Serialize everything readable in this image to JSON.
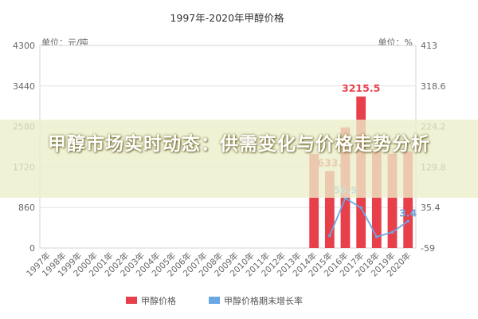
{
  "overlay": {
    "headline": "甲醇市场实时动态：供需变化与价格走势分析"
  },
  "chart_data": {
    "type": "bar",
    "title": "1997年-2020年甲醇价格",
    "left_unit_label": "单位：元/吨",
    "right_unit_label": "单位：%",
    "categories": [
      "1997年",
      "1998年",
      "1999年",
      "2000年",
      "2001年",
      "2002年",
      "2003年",
      "2004年",
      "2005年",
      "2006年",
      "2007年",
      "2008年",
      "2009年",
      "2010年",
      "2011年",
      "2012年",
      "2013年",
      "2014年",
      "2015年",
      "2016年",
      "2017年",
      "2018年",
      "2019年",
      "2020年"
    ],
    "left_axis": {
      "min": 0,
      "max": 4300,
      "ticks": [
        "0",
        "860",
        "1720",
        "2580",
        "3440",
        "4300"
      ]
    },
    "right_axis": {
      "min": -59,
      "max": 413,
      "ticks": [
        "-59",
        "35.4",
        "129.8",
        "224.2",
        "318.6",
        "413"
      ]
    },
    "series": [
      {
        "name": "甲醇价格",
        "type": "bar",
        "axis": "left",
        "color": "#e8404b",
        "values": [
          null,
          null,
          null,
          null,
          null,
          null,
          null,
          null,
          null,
          null,
          null,
          null,
          null,
          null,
          null,
          null,
          null,
          2000,
          1634,
          2560,
          3216,
          2050,
          2000,
          2050
        ]
      },
      {
        "name": "甲醇价格期末增长率",
        "type": "line",
        "axis": "right",
        "color": "#6aa6e4",
        "values": [
          null,
          null,
          null,
          null,
          null,
          null,
          null,
          null,
          null,
          null,
          null,
          null,
          null,
          null,
          null,
          null,
          null,
          null,
          -30,
          57,
          35,
          -33,
          -22,
          3.4
        ]
      }
    ],
    "data_labels": [
      {
        "series": 0,
        "index": 20,
        "text": "3215.5",
        "color": "#e8404b"
      },
      {
        "series": 0,
        "index": 18,
        "text": "1633.9",
        "color": "#e8404b"
      },
      {
        "series": 1,
        "index": 19,
        "text": "56.9",
        "color": "#6aa6e4"
      },
      {
        "series": 1,
        "index": 23,
        "text": "3.4",
        "color": "#6aa6e4"
      }
    ],
    "grid": true,
    "legend_position": "bottom"
  }
}
